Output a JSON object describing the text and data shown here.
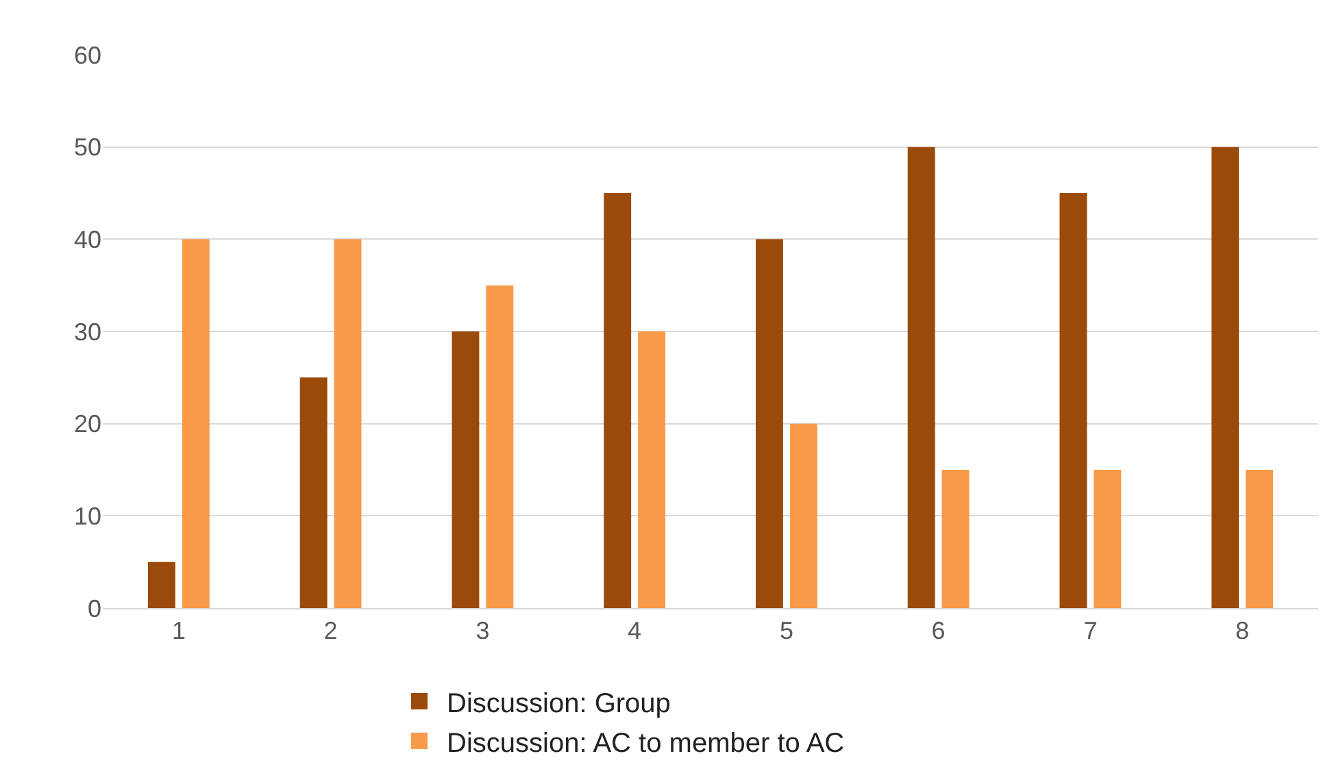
{
  "chart_data": {
    "type": "bar",
    "categories": [
      "1",
      "2",
      "3",
      "4",
      "5",
      "6",
      "7",
      "8"
    ],
    "series": [
      {
        "name": "Discussion: Group",
        "color": "#9c4a09",
        "values": [
          5,
          25,
          30,
          45,
          40,
          50,
          45,
          50
        ]
      },
      {
        "name": "Discussion: AC to member to AC",
        "color": "#f79a4a",
        "values": [
          40,
          40,
          35,
          30,
          20,
          15,
          15,
          15
        ]
      }
    ],
    "ylim": [
      0,
      60
    ],
    "yticks": [
      0,
      10,
      20,
      30,
      40,
      50,
      60
    ],
    "grid": "y",
    "legend": "bottom"
  }
}
